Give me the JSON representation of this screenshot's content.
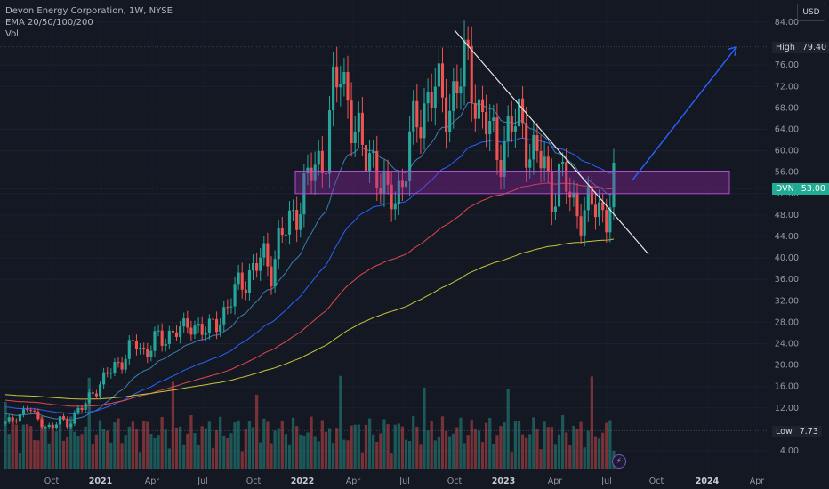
{
  "legend": {
    "symbol_line": "Devon Energy Corporation, 1W, NYSE",
    "ema_line": "EMA 20/50/100/200",
    "vol_line": "Vol"
  },
  "currency": "USD",
  "price_axis": {
    "ticks": [
      "84.00",
      "76.00",
      "72.00",
      "68.00",
      "64.00",
      "60.00",
      "56.00",
      "52.00",
      "48.00",
      "44.00",
      "40.00",
      "36.00",
      "32.00",
      "28.00",
      "24.00",
      "20.00",
      "16.00",
      "12.00",
      "8.00",
      "4.00"
    ]
  },
  "date_axis": {
    "ticks": [
      {
        "label": "Oct",
        "bold": false
      },
      {
        "label": "2021",
        "bold": true
      },
      {
        "label": "Apr",
        "bold": false
      },
      {
        "label": "Jul",
        "bold": false
      },
      {
        "label": "Oct",
        "bold": false
      },
      {
        "label": "2022",
        "bold": true
      },
      {
        "label": "Apr",
        "bold": false
      },
      {
        "label": "Jul",
        "bold": false
      },
      {
        "label": "Oct",
        "bold": false
      },
      {
        "label": "2023",
        "bold": true
      },
      {
        "label": "Apr",
        "bold": false
      },
      {
        "label": "Jul",
        "bold": false
      },
      {
        "label": "Oct",
        "bold": false
      },
      {
        "label": "2024",
        "bold": true
      },
      {
        "label": "Apr",
        "bold": false
      }
    ]
  },
  "tags": {
    "high": {
      "label": "High",
      "value": "79.40"
    },
    "current": {
      "label": "DVN",
      "value": "53.00"
    },
    "low": {
      "label": "Low",
      "value": "7.73"
    }
  },
  "colors": {
    "up": "#26a69a",
    "down": "#ef5350",
    "ema20": "#3d7fb3",
    "ema50": "#2962ff",
    "ema100": "#e0484f",
    "ema200": "#c6c63a",
    "zone": "#9c27b0",
    "trendline": "#e6e6e6",
    "arrow": "#2962ff"
  },
  "bolt_icon": "lightning-icon",
  "chart_data": {
    "type": "candlestick",
    "title": "Devon Energy Corporation, 1W, NYSE",
    "symbol": "DVN",
    "exchange": "NYSE",
    "interval": "1W",
    "currency": "USD",
    "ylim": [
      2,
      86
    ],
    "period": [
      "2020-06",
      "2023-07"
    ],
    "high_marker": 79.4,
    "low_marker": 7.73,
    "last_price": 53.0,
    "indicators": [
      "EMA 20",
      "EMA 50",
      "EMA 100",
      "EMA 200",
      "Vol"
    ],
    "closes_approx": [
      9,
      10,
      11,
      12,
      10,
      9,
      8,
      10,
      9,
      11,
      12,
      15,
      16,
      18,
      20,
      21,
      23,
      24,
      22,
      25,
      24,
      26,
      27,
      26,
      28,
      27,
      26,
      28,
      30,
      32,
      35,
      37,
      38,
      40,
      38,
      43,
      45,
      48,
      52,
      55,
      57,
      60,
      70,
      74,
      70,
      63,
      58,
      60,
      55,
      50,
      52,
      55,
      62,
      66,
      70,
      72,
      68,
      70,
      72,
      76,
      73,
      66,
      64,
      60,
      62,
      64,
      66,
      62,
      58,
      58,
      52,
      55,
      53,
      50,
      48,
      49,
      50,
      48,
      53
    ],
    "zone": {
      "from": 52,
      "to": 56.2
    },
    "annotations": [
      "descending trendline from ~79 (Oct 2022) to ~41 (Aug 2023)",
      "projection arrow up toward ~79.40 High"
    ]
  }
}
